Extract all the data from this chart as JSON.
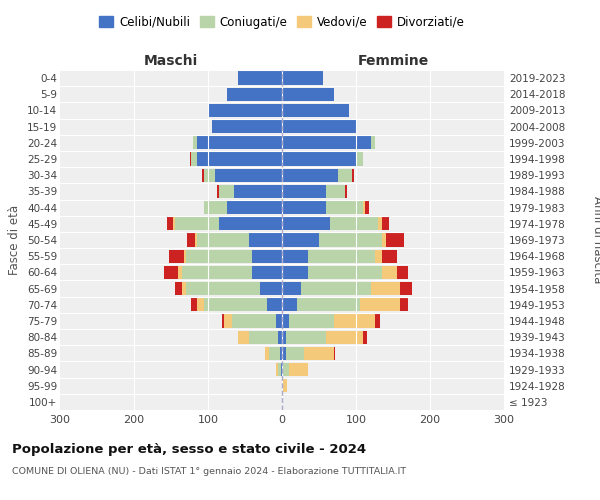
{
  "age_groups": [
    "100+",
    "95-99",
    "90-94",
    "85-89",
    "80-84",
    "75-79",
    "70-74",
    "65-69",
    "60-64",
    "55-59",
    "50-54",
    "45-49",
    "40-44",
    "35-39",
    "30-34",
    "25-29",
    "20-24",
    "15-19",
    "10-14",
    "5-9",
    "0-4"
  ],
  "birth_years": [
    "≤ 1923",
    "1924-1928",
    "1929-1933",
    "1934-1938",
    "1939-1943",
    "1944-1948",
    "1949-1953",
    "1954-1958",
    "1959-1963",
    "1964-1968",
    "1969-1973",
    "1974-1978",
    "1979-1983",
    "1984-1988",
    "1989-1993",
    "1994-1998",
    "1999-2003",
    "2004-2008",
    "2009-2013",
    "2014-2018",
    "2019-2023"
  ],
  "colors": {
    "celibi": "#4472C4",
    "coniugati": "#B8D4A8",
    "vedovi": "#F5C97A",
    "divorziati": "#CC2222"
  },
  "maschi": {
    "celibi": [
      0,
      0,
      1,
      3,
      5,
      8,
      20,
      30,
      40,
      40,
      45,
      85,
      75,
      65,
      90,
      115,
      115,
      95,
      100,
      75,
      60
    ],
    "coniugati": [
      0,
      0,
      5,
      15,
      40,
      60,
      85,
      100,
      95,
      90,
      70,
      60,
      30,
      20,
      15,
      8,
      5,
      0,
      0,
      0,
      0
    ],
    "vedovi": [
      0,
      0,
      2,
      5,
      15,
      10,
      10,
      5,
      5,
      3,
      3,
      2,
      0,
      0,
      0,
      0,
      0,
      0,
      0,
      0,
      0
    ],
    "divorziati": [
      0,
      0,
      0,
      0,
      0,
      3,
      8,
      10,
      20,
      20,
      10,
      8,
      0,
      3,
      3,
      2,
      0,
      0,
      0,
      0,
      0
    ]
  },
  "femmine": {
    "celibi": [
      0,
      0,
      2,
      5,
      5,
      10,
      20,
      25,
      35,
      35,
      50,
      65,
      60,
      60,
      75,
      100,
      120,
      100,
      90,
      70,
      55
    ],
    "coniugati": [
      0,
      2,
      8,
      25,
      55,
      60,
      85,
      95,
      100,
      90,
      85,
      65,
      50,
      25,
      20,
      10,
      5,
      0,
      0,
      0,
      0
    ],
    "vedovi": [
      0,
      5,
      25,
      40,
      50,
      55,
      55,
      40,
      20,
      10,
      5,
      5,
      2,
      0,
      0,
      0,
      0,
      0,
      0,
      0,
      0
    ],
    "divorziati": [
      0,
      0,
      0,
      2,
      5,
      8,
      10,
      15,
      15,
      20,
      25,
      10,
      5,
      3,
      2,
      0,
      0,
      0,
      0,
      0,
      0
    ]
  },
  "title": "Popolazione per età, sesso e stato civile - 2024",
  "subtitle": "COMUNE DI OLIENA (NU) - Dati ISTAT 1° gennaio 2024 - Elaborazione TUTTITALIA.IT",
  "xlabel_maschi": "Maschi",
  "xlabel_femmine": "Femmine",
  "ylabel": "Fasce di età",
  "ylabel_right": "Anni di nascita",
  "xlim": 300,
  "legend_labels": [
    "Celibi/Nubili",
    "Coniugati/e",
    "Vedovi/e",
    "Divorziati/e"
  ],
  "bg_color": "#FFFFFF",
  "plot_bg": "#EFEFEF",
  "grid_color": "#FFFFFF"
}
